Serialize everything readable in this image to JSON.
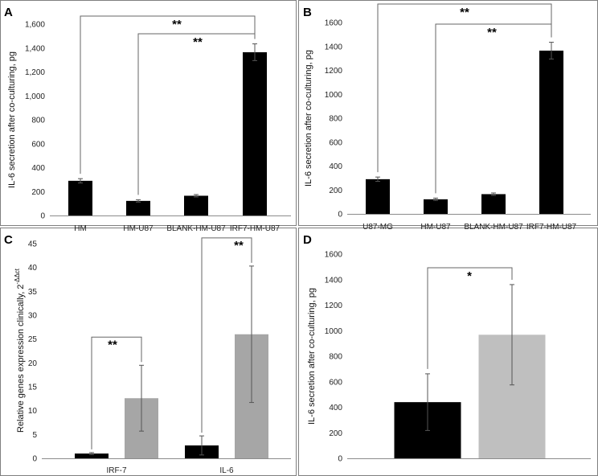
{
  "chart_data": [
    {
      "panel": "A",
      "type": "bar",
      "title": "",
      "xlabel": "",
      "ylabel": "IL-6 secretion after co-culturing, pg",
      "categories": [
        "HM",
        "HM-U87",
        "BLANK-HM-U87",
        "IRF7-HM-U87"
      ],
      "values": [
        290,
        122,
        165,
        1365
      ],
      "errors": [
        18,
        10,
        10,
        70
      ],
      "colors": [
        "#000000",
        "#000000",
        "#000000",
        "#000000"
      ],
      "ylim": [
        0,
        1600
      ],
      "yticks": [
        "0",
        "200",
        "400",
        "600",
        "800",
        "1,000",
        "1,200",
        "1,400",
        "1,600"
      ],
      "significance": [
        {
          "from": 0,
          "to": 3,
          "label": "**"
        },
        {
          "from": 1,
          "to": 3,
          "label": "**"
        }
      ]
    },
    {
      "panel": "B",
      "type": "bar",
      "title": "",
      "xlabel": "",
      "ylabel": "IL-6 secretion after co-culturing, pg",
      "categories": [
        "U87-MG",
        "HM-U87",
        "BLANK-HM-U87",
        "IRF7-HM-U87"
      ],
      "values": [
        290,
        122,
        165,
        1365
      ],
      "errors": [
        18,
        10,
        10,
        70
      ],
      "colors": [
        "#000000",
        "#000000",
        "#000000",
        "#000000"
      ],
      "ylim": [
        0,
        1600
      ],
      "yticks": [
        "0",
        "200",
        "400",
        "600",
        "800",
        "1000",
        "1200",
        "1400",
        "1600"
      ],
      "significance": [
        {
          "from": 0,
          "to": 3,
          "label": "**"
        },
        {
          "from": 1,
          "to": 3,
          "label": "**"
        }
      ]
    },
    {
      "panel": "C",
      "type": "bar",
      "title": "",
      "xlabel": "",
      "ylabel": "Relative  genes expression clinically, 2",
      "ylabel_superscript": "-ΔΔct",
      "categories": [
        "IRF-7",
        "IL-6"
      ],
      "series": [
        {
          "name": "",
          "color": "#000000",
          "values": [
            1.0,
            2.7
          ],
          "errors": [
            0.2,
            2.0
          ]
        },
        {
          "name": "",
          "color": "#a6a6a6",
          "values": [
            12.6,
            26.0
          ],
          "errors": [
            6.9,
            14.3
          ]
        }
      ],
      "ylim": [
        0,
        45
      ],
      "yticks": [
        "0",
        "5",
        "10",
        "15",
        "20",
        "25",
        "30",
        "35",
        "40",
        "45"
      ],
      "significance": [
        {
          "group": 0,
          "label": "**"
        },
        {
          "group": 1,
          "label": "**"
        }
      ]
    },
    {
      "panel": "D",
      "type": "bar",
      "title": "",
      "xlabel": "",
      "ylabel": "IL-6 secretion after co-culturing, pg",
      "categories": [
        "",
        ""
      ],
      "values": [
        440,
        968
      ],
      "errors": [
        222,
        393
      ],
      "colors": [
        "#000000",
        "#bfbfbf"
      ],
      "ylim": [
        0,
        1600
      ],
      "yticks": [
        "0",
        "200",
        "400",
        "600",
        "800",
        "1000",
        "1200",
        "1400",
        "1600"
      ],
      "significance": [
        {
          "from": 0,
          "to": 1,
          "label": "*"
        }
      ]
    }
  ]
}
